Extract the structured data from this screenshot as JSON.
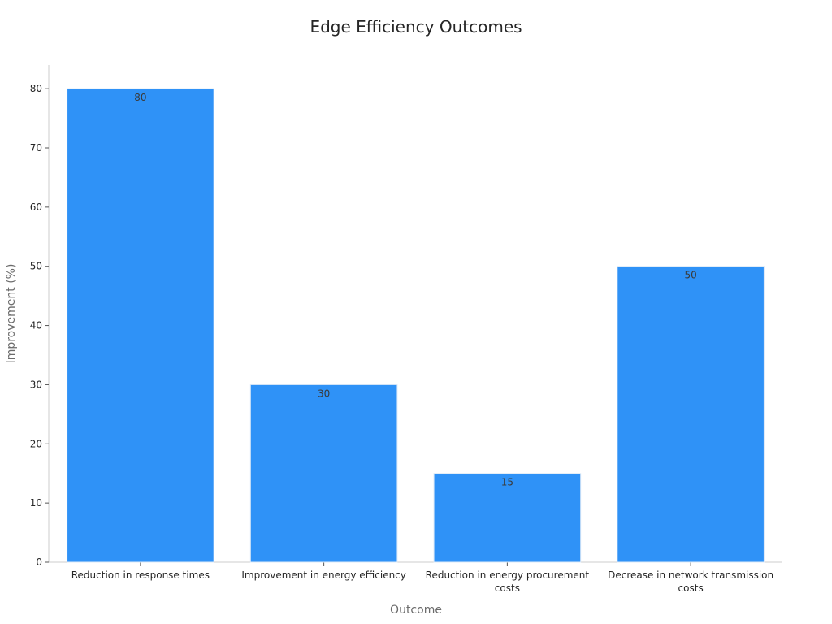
{
  "chart_data": {
    "type": "bar",
    "title": "Edge Efficiency Outcomes",
    "xlabel": "Outcome",
    "ylabel": "Improvement (%)",
    "categories": [
      [
        "Reduction in response times"
      ],
      [
        "Improvement in energy efficiency"
      ],
      [
        "Reduction in energy procurement",
        "costs"
      ],
      [
        "Decrease in network transmission",
        "costs"
      ]
    ],
    "values": [
      80,
      30,
      15,
      50
    ],
    "data_labels": [
      "80",
      "30",
      "15",
      "50"
    ],
    "ylim": [
      0,
      84
    ],
    "yticks": [
      0,
      10,
      20,
      30,
      40,
      50,
      60,
      70,
      80
    ],
    "bar_color": "#2f92f7",
    "grid": false
  }
}
